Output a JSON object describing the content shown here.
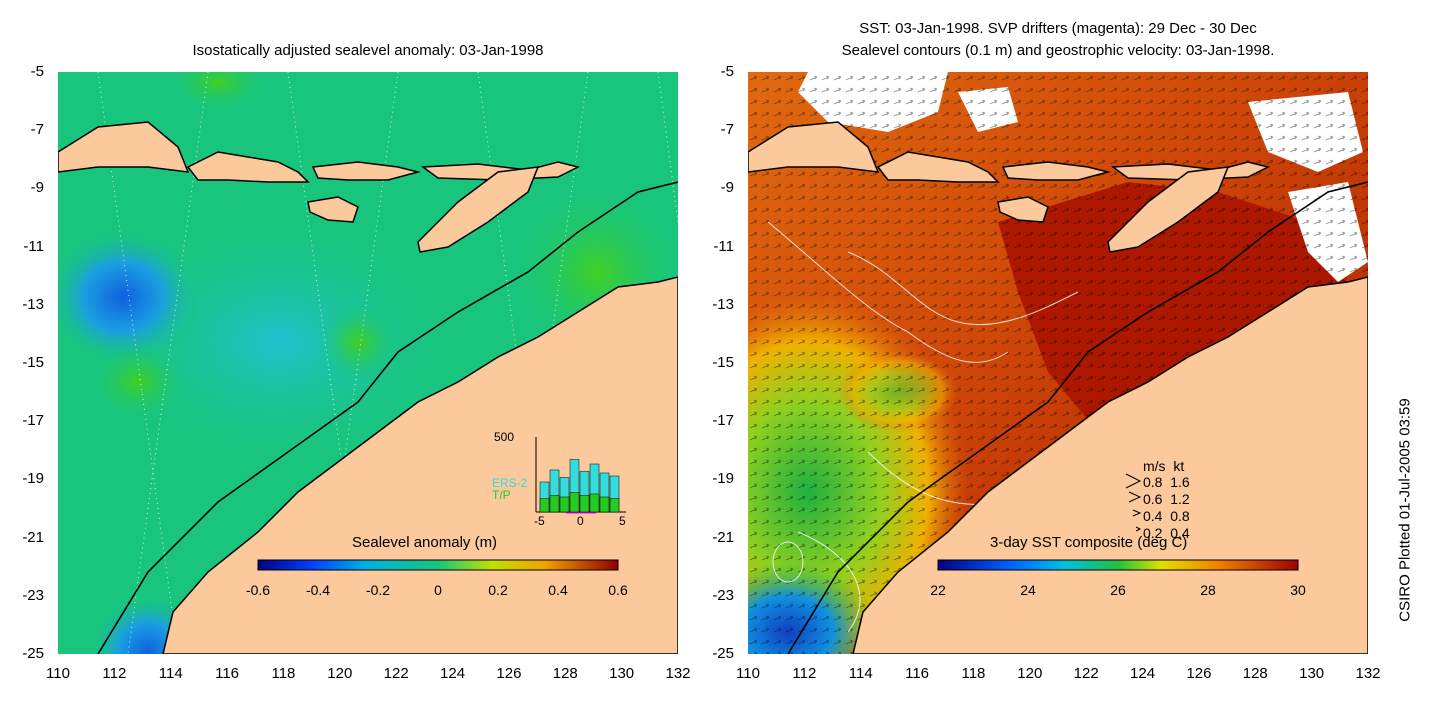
{
  "left_panel": {
    "title": "Isostatically adjusted sealevel anomaly: 03-Jan-1998",
    "colorbar": {
      "label": "Sealevel anomaly (m)",
      "ticks": [
        "-0.6",
        "-0.4",
        "-0.2",
        "0",
        "0.2",
        "0.4",
        "0.6"
      ]
    },
    "inset": {
      "ymax_label": "500",
      "series": [
        "ERS-2",
        "T/P"
      ],
      "series_colors": [
        "#33dddd",
        "#22cc22"
      ],
      "xticks": [
        "-5",
        "0",
        "5"
      ],
      "bars_ers2": [
        200,
        280,
        230,
        350,
        270,
        320,
        260,
        240
      ],
      "bars_tp": [
        90,
        110,
        100,
        130,
        110,
        120,
        100,
        90
      ]
    }
  },
  "right_panel": {
    "title_line1": "SST: 03-Jan-1998. SVP drifters (magenta): 29 Dec - 30 Dec",
    "title_line2": "Sealevel contours (0.1 m) and geostrophic velocity: 03-Jan-1998.",
    "colorbar": {
      "label": "3-day SST composite (deg C)",
      "ticks": [
        "22",
        "24",
        "26",
        "28",
        "30"
      ]
    },
    "velocity_legend": {
      "header": "m/s  kt",
      "rows": [
        "0.8  1.6",
        "0.6  1.2",
        "0.4  0.8",
        "0.2  0.4"
      ]
    }
  },
  "axes": {
    "yticks": [
      "-5",
      "-7",
      "-9",
      "-11",
      "-13",
      "-15",
      "-17",
      "-19",
      "-21",
      "-23",
      "-25"
    ],
    "xticks": [
      "110",
      "112",
      "114",
      "116",
      "118",
      "120",
      "122",
      "124",
      "126",
      "128",
      "130",
      "132"
    ]
  },
  "colors": {
    "land": "#fbc99c",
    "ocean_sla": "#19c57c",
    "ocean_sst_warm": "#a81400"
  },
  "footer": {
    "plotted": "CSIRO Plotted 01-Jul-2005 03:59"
  }
}
